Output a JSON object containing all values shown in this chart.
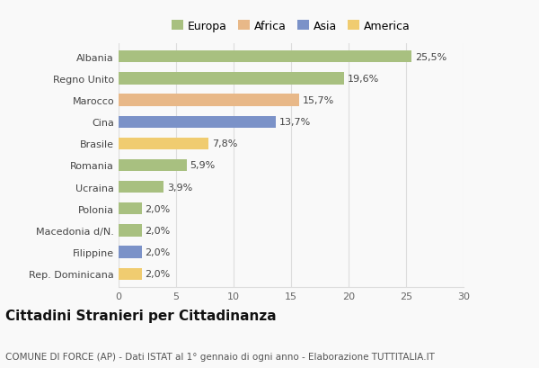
{
  "countries": [
    "Albania",
    "Regno Unito",
    "Marocco",
    "Cina",
    "Brasile",
    "Romania",
    "Ucraina",
    "Polonia",
    "Macedonia d/N.",
    "Filippine",
    "Rep. Dominicana"
  ],
  "values": [
    25.5,
    19.6,
    15.7,
    13.7,
    7.8,
    5.9,
    3.9,
    2.0,
    2.0,
    2.0,
    2.0
  ],
  "labels": [
    "25,5%",
    "19,6%",
    "15,7%",
    "13,7%",
    "7,8%",
    "5,9%",
    "3,9%",
    "2,0%",
    "2,0%",
    "2,0%",
    "2,0%"
  ],
  "colors": [
    "#a8c080",
    "#a8c080",
    "#e8b888",
    "#7b92c8",
    "#f0cc70",
    "#a8c080",
    "#a8c080",
    "#a8c080",
    "#a8c080",
    "#7b92c8",
    "#f0cc70"
  ],
  "legend_labels": [
    "Europa",
    "Africa",
    "Asia",
    "America"
  ],
  "legend_colors": [
    "#a8c080",
    "#e8b888",
    "#7b92c8",
    "#f0cc70"
  ],
  "title": "Cittadini Stranieri per Cittadinanza",
  "subtitle": "COMUNE DI FORCE (AP) - Dati ISTAT al 1° gennaio di ogni anno - Elaborazione TUTTITALIA.IT",
  "xlim": [
    0,
    30
  ],
  "xticks": [
    0,
    5,
    10,
    15,
    20,
    25,
    30
  ],
  "background_color": "#f9f9f9",
  "grid_color": "#dddddd",
  "title_fontsize": 11,
  "subtitle_fontsize": 7.5,
  "label_fontsize": 8,
  "tick_fontsize": 8,
  "legend_fontsize": 9
}
